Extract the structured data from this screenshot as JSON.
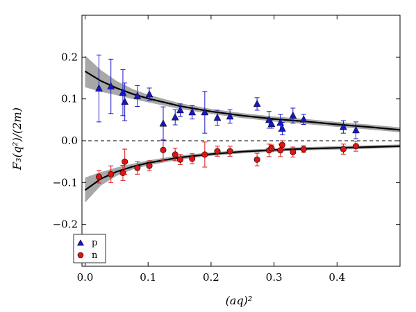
{
  "chart_data": {
    "type": "scatter",
    "xlabel": "(aq)²",
    "ylabel": "F₃(q²)/(2m)",
    "xlim": [
      -0.005,
      0.5
    ],
    "ylim": [
      -0.3,
      0.3
    ],
    "xticks": [
      "0.0",
      "0.1",
      "0.2",
      "0.3",
      "0.4"
    ],
    "yticks": [
      "0.2",
      "0.1",
      "0.0",
      "−0.1",
      "−0.2"
    ],
    "xtick_values": [
      0.0,
      0.1,
      0.2,
      0.3,
      0.4
    ],
    "ytick_values": [
      0.2,
      0.1,
      0.0,
      -0.1,
      -0.2
    ],
    "zero_line": "dashed",
    "legend_position": "lower-left",
    "series": [
      {
        "name": "p",
        "marker": "triangle",
        "color": "#1616c8",
        "points": [
          {
            "x": 0.022,
            "y": 0.125,
            "err": 0.08
          },
          {
            "x": 0.041,
            "y": 0.13,
            "err": 0.065
          },
          {
            "x": 0.06,
            "y": 0.115,
            "err": 0.055
          },
          {
            "x": 0.063,
            "y": 0.093,
            "err": 0.045
          },
          {
            "x": 0.083,
            "y": 0.107,
            "err": 0.025
          },
          {
            "x": 0.102,
            "y": 0.111,
            "err": 0.015
          },
          {
            "x": 0.124,
            "y": 0.041,
            "err": 0.04
          },
          {
            "x": 0.143,
            "y": 0.056,
            "err": 0.018
          },
          {
            "x": 0.151,
            "y": 0.073,
            "err": 0.015
          },
          {
            "x": 0.17,
            "y": 0.068,
            "err": 0.016
          },
          {
            "x": 0.19,
            "y": 0.068,
            "err": 0.05
          },
          {
            "x": 0.21,
            "y": 0.055,
            "err": 0.018
          },
          {
            "x": 0.23,
            "y": 0.058,
            "err": 0.016
          },
          {
            "x": 0.273,
            "y": 0.088,
            "err": 0.015
          },
          {
            "x": 0.292,
            "y": 0.05,
            "err": 0.02
          },
          {
            "x": 0.296,
            "y": 0.04,
            "err": 0.01
          },
          {
            "x": 0.31,
            "y": 0.043,
            "err": 0.02
          },
          {
            "x": 0.313,
            "y": 0.029,
            "err": 0.015
          },
          {
            "x": 0.33,
            "y": 0.06,
            "err": 0.018
          },
          {
            "x": 0.347,
            "y": 0.051,
            "err": 0.012
          },
          {
            "x": 0.41,
            "y": 0.033,
            "err": 0.015
          },
          {
            "x": 0.43,
            "y": 0.025,
            "err": 0.02
          }
        ]
      },
      {
        "name": "n",
        "marker": "circle",
        "color": "#dd1515",
        "points": [
          {
            "x": 0.022,
            "y": -0.086,
            "err": 0.015
          },
          {
            "x": 0.041,
            "y": -0.08,
            "err": 0.02
          },
          {
            "x": 0.06,
            "y": -0.077,
            "err": 0.018
          },
          {
            "x": 0.063,
            "y": -0.05,
            "err": 0.03
          },
          {
            "x": 0.083,
            "y": -0.065,
            "err": 0.015
          },
          {
            "x": 0.102,
            "y": -0.06,
            "err": 0.012
          },
          {
            "x": 0.124,
            "y": -0.022,
            "err": 0.025
          },
          {
            "x": 0.143,
            "y": -0.033,
            "err": 0.015
          },
          {
            "x": 0.151,
            "y": -0.045,
            "err": 0.012
          },
          {
            "x": 0.17,
            "y": -0.043,
            "err": 0.012
          },
          {
            "x": 0.19,
            "y": -0.033,
            "err": 0.03
          },
          {
            "x": 0.21,
            "y": -0.025,
            "err": 0.012
          },
          {
            "x": 0.23,
            "y": -0.025,
            "err": 0.012
          },
          {
            "x": 0.273,
            "y": -0.045,
            "err": 0.015
          },
          {
            "x": 0.292,
            "y": -0.023,
            "err": 0.015
          },
          {
            "x": 0.296,
            "y": -0.018,
            "err": 0.008
          },
          {
            "x": 0.31,
            "y": -0.023,
            "err": 0.015
          },
          {
            "x": 0.313,
            "y": -0.01,
            "err": 0.01
          },
          {
            "x": 0.33,
            "y": -0.027,
            "err": 0.012
          },
          {
            "x": 0.347,
            "y": -0.02,
            "err": 0.008
          },
          {
            "x": 0.41,
            "y": -0.02,
            "err": 0.012
          },
          {
            "x": 0.43,
            "y": -0.013,
            "err": 0.012
          }
        ]
      }
    ],
    "fits": [
      {
        "series": "p",
        "color": "#000000",
        "band_color": "#a8a8a8",
        "x": [
          0,
          0.025,
          0.05,
          0.075,
          0.1,
          0.15,
          0.2,
          0.25,
          0.3,
          0.35,
          0.4,
          0.45,
          0.5
        ],
        "y": [
          0.166,
          0.143,
          0.126,
          0.112,
          0.101,
          0.083,
          0.07,
          0.06,
          0.052,
          0.046,
          0.039,
          0.033,
          0.026
        ],
        "band": [
          0.038,
          0.026,
          0.017,
          0.012,
          0.009,
          0.007,
          0.006,
          0.006,
          0.006,
          0.006,
          0.006,
          0.006,
          0.006
        ]
      },
      {
        "series": "n",
        "color": "#000000",
        "band_color": "#a8a8a8",
        "x": [
          0,
          0.025,
          0.05,
          0.075,
          0.1,
          0.15,
          0.2,
          0.25,
          0.3,
          0.35,
          0.4,
          0.45,
          0.5
        ],
        "y": [
          -0.118,
          -0.091,
          -0.074,
          -0.062,
          -0.053,
          -0.04,
          -0.032,
          -0.026,
          -0.022,
          -0.019,
          -0.017,
          -0.015,
          -0.013
        ],
        "band": [
          0.03,
          0.016,
          0.01,
          0.007,
          0.006,
          0.005,
          0.004,
          0.004,
          0.004,
          0.004,
          0.004,
          0.004,
          0.004
        ]
      }
    ]
  }
}
